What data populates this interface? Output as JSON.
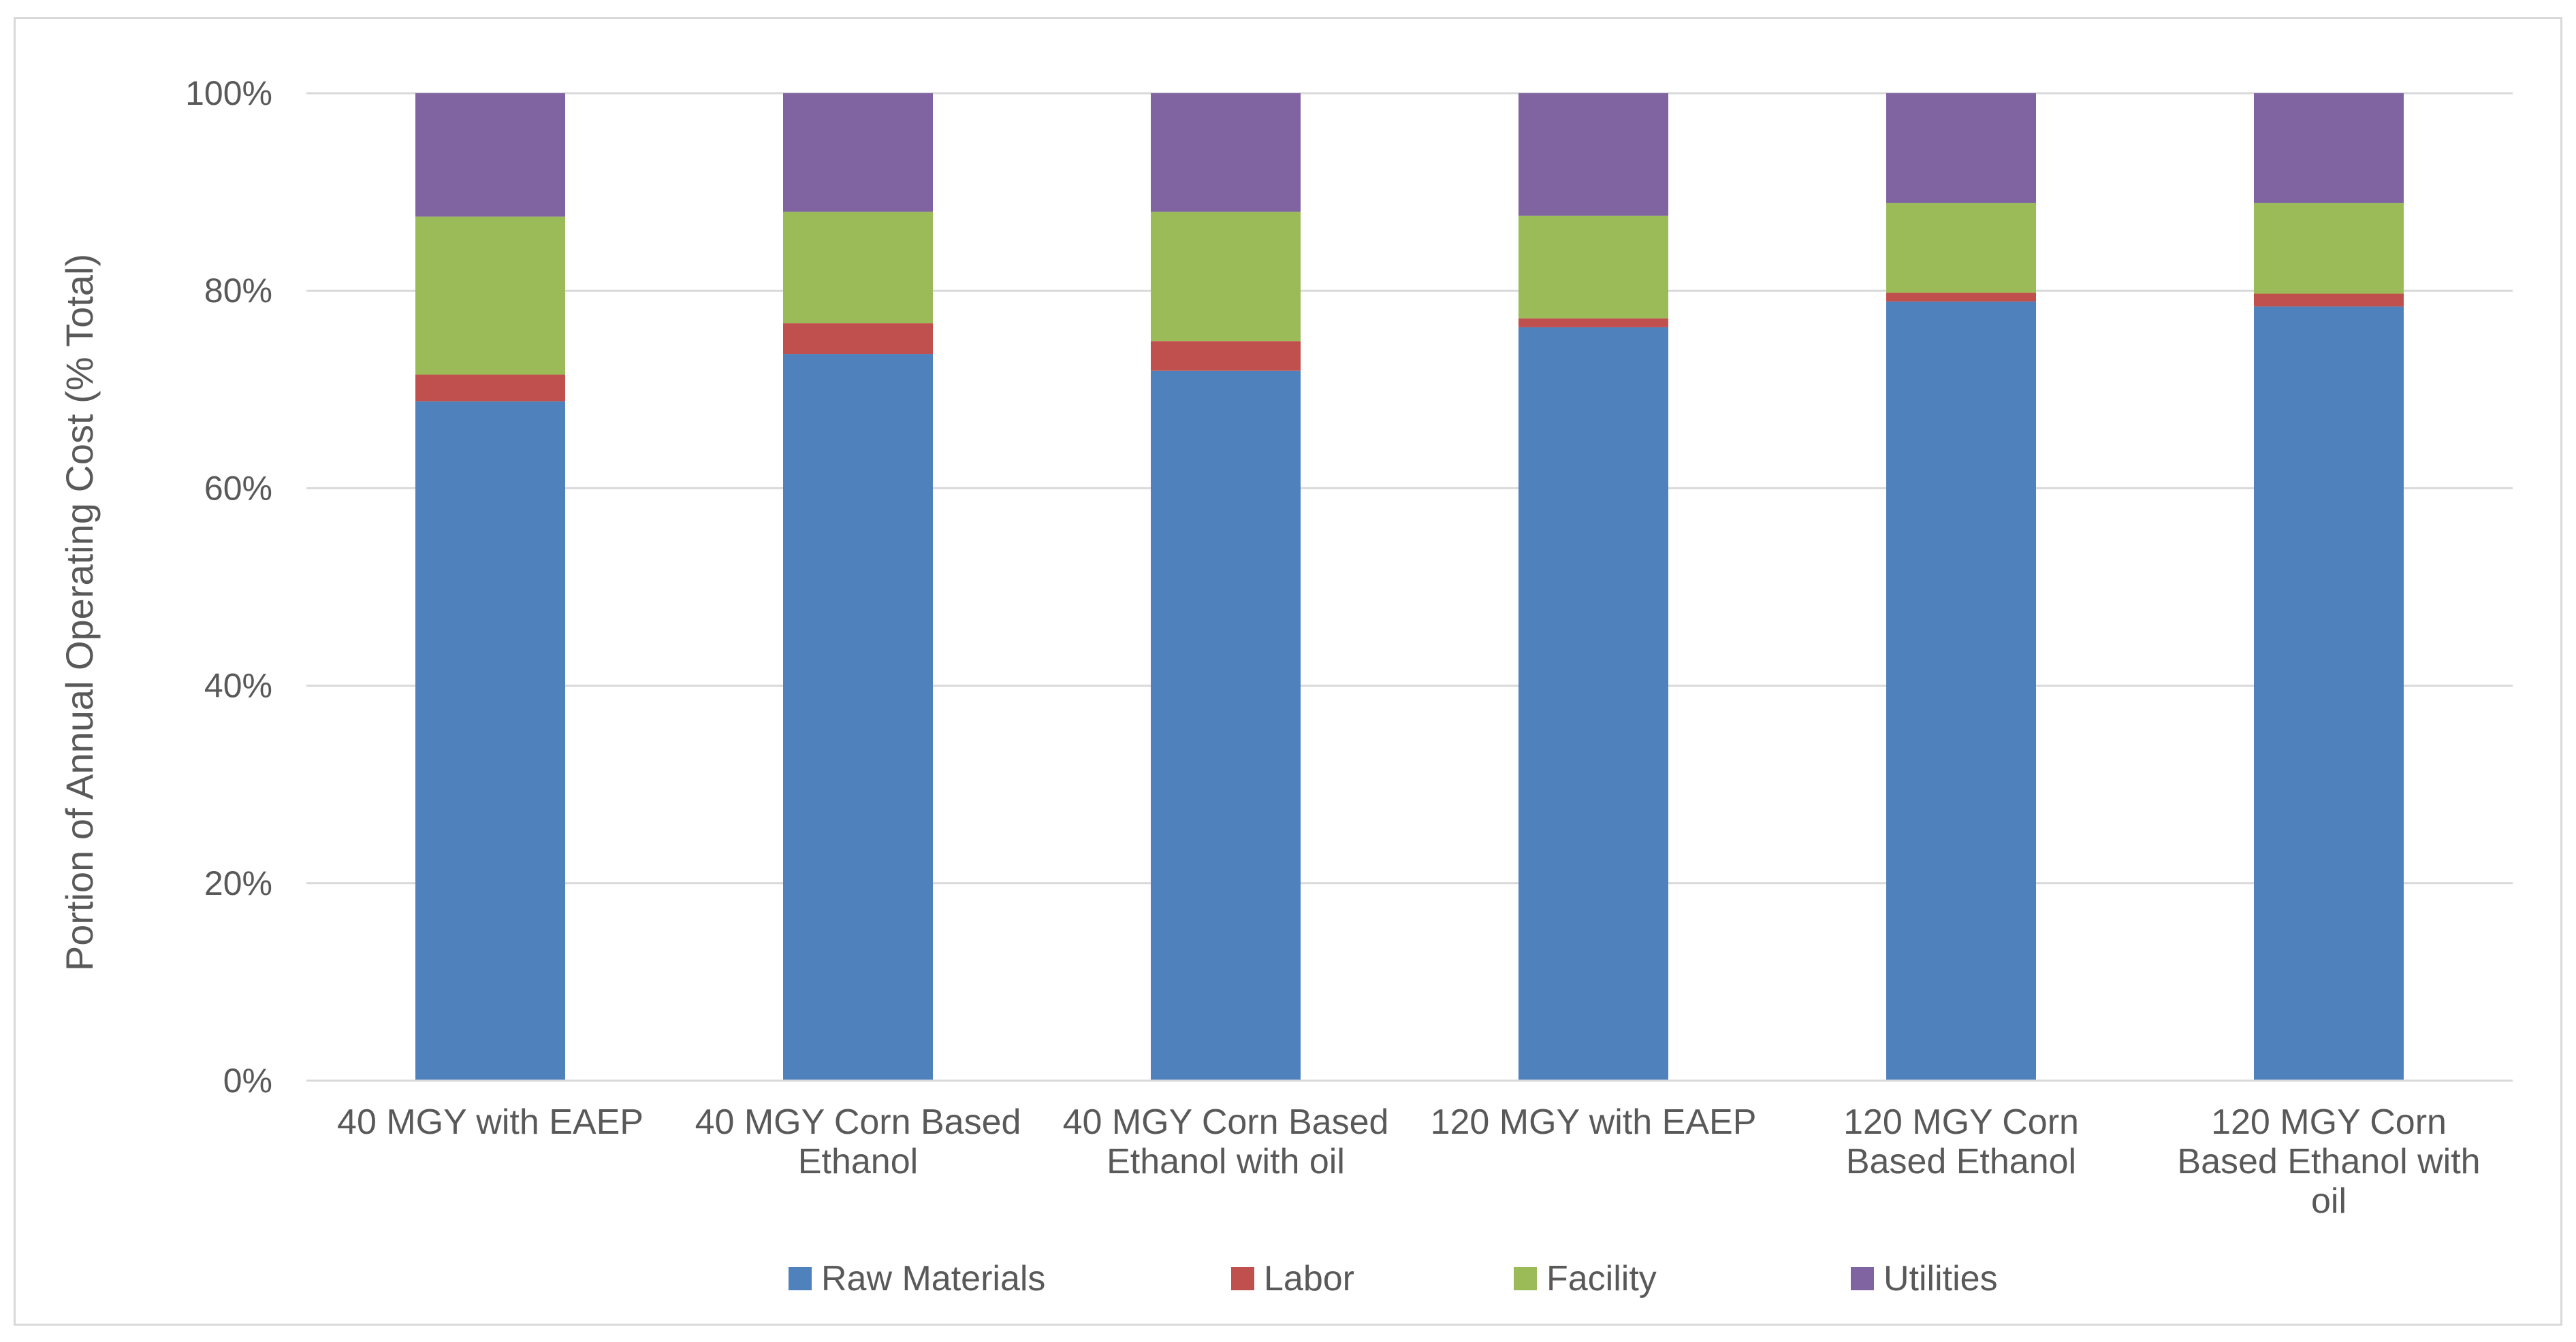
{
  "chart_data": {
    "type": "bar",
    "stacked": true,
    "title": "",
    "xlabel": "",
    "ylabel": "Portion of Annual Operating Cost (% Total)",
    "ylim": [
      0,
      100
    ],
    "yticks": [
      "0%",
      "20%",
      "40%",
      "60%",
      "80%",
      "100%"
    ],
    "ytick_values": [
      0,
      20,
      40,
      60,
      80,
      100
    ],
    "grid": true,
    "legend_position": "bottom",
    "categories": [
      [
        "40 MGY with EAEP"
      ],
      [
        "40 MGY Corn Based",
        "Ethanol"
      ],
      [
        "40 MGY Corn Based",
        "Ethanol with oil"
      ],
      [
        "120 MGY with EAEP"
      ],
      [
        "120 MGY Corn",
        "Based Ethanol"
      ],
      [
        "120 MGY Corn",
        "Based Ethanol with",
        "oil"
      ]
    ],
    "series": [
      {
        "name": "Raw Materials",
        "color": "#4f81bd",
        "values": [
          68.8,
          73.6,
          71.9,
          76.3,
          78.9,
          78.4
        ]
      },
      {
        "name": "Labor",
        "color": "#c0504d",
        "values": [
          2.7,
          3.1,
          3.0,
          0.9,
          0.9,
          1.3
        ]
      },
      {
        "name": "Facility",
        "color": "#9bbb59",
        "values": [
          16.0,
          11.3,
          13.1,
          10.4,
          9.1,
          9.2
        ]
      },
      {
        "name": "Utilities",
        "color": "#8064a2",
        "values": [
          12.5,
          12.0,
          12.0,
          12.4,
          11.1,
          11.1
        ]
      }
    ]
  }
}
